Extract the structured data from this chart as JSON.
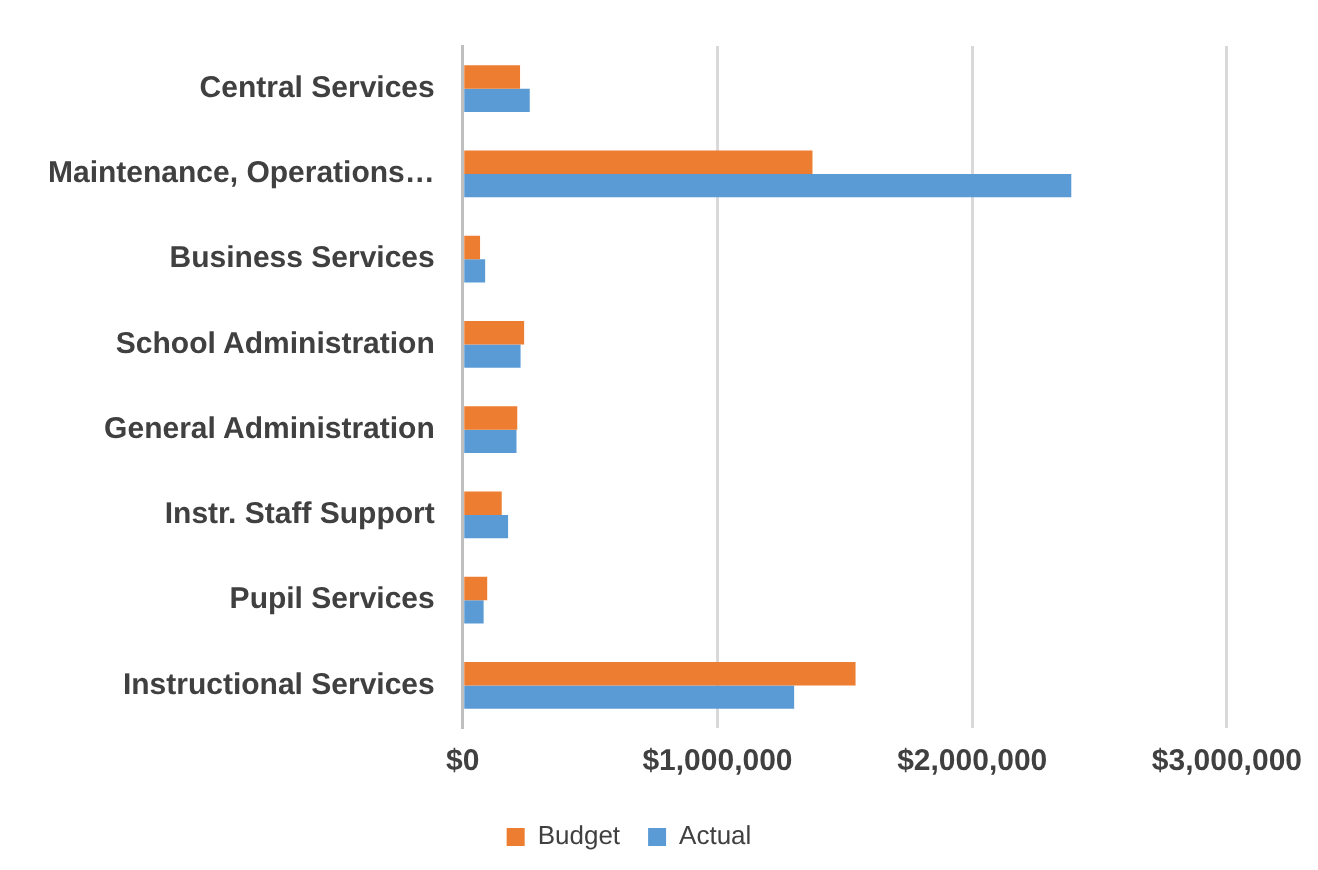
{
  "chart_data": {
    "type": "bar",
    "orientation": "horizontal",
    "categories": [
      "Central Services",
      "Maintenance, Operations…",
      "Business Services",
      "School Administration",
      "General Administration",
      "Instr. Staff Support",
      "Pupil Services",
      "Instructional Services"
    ],
    "series": [
      {
        "name": "Budget",
        "color": "#ed7d31",
        "values": [
          225000,
          1373000,
          68000,
          241000,
          214000,
          153000,
          96000,
          1542000
        ]
      },
      {
        "name": "Actual",
        "color": "#5b9bd5",
        "values": [
          263000,
          2389000,
          88000,
          227000,
          211000,
          178000,
          82000,
          1301000
        ]
      }
    ],
    "xlim": [
      0,
      3000000
    ],
    "xticks": [
      {
        "value": 0,
        "label": "$0"
      },
      {
        "value": 1000000,
        "label": "$1,000,000"
      },
      {
        "value": 2000000,
        "label": "$2,000,000"
      },
      {
        "value": 3000000,
        "label": "$3,000,000"
      }
    ],
    "grid": "x",
    "legend": "bottom"
  }
}
